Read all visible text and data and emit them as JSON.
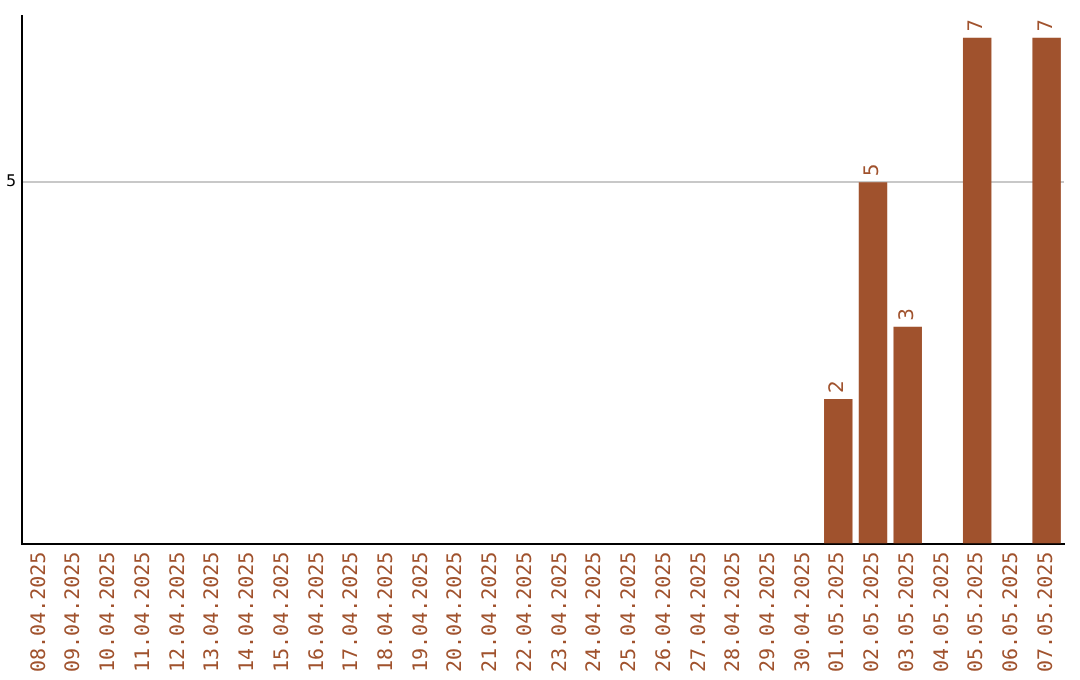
{
  "chart_data": {
    "type": "bar",
    "categories": [
      "08.04.2025",
      "09.04.2025",
      "10.04.2025",
      "11.04.2025",
      "12.04.2025",
      "13.04.2025",
      "14.04.2025",
      "15.04.2025",
      "16.04.2025",
      "17.04.2025",
      "18.04.2025",
      "19.04.2025",
      "20.04.2025",
      "21.04.2025",
      "22.04.2025",
      "23.04.2025",
      "24.04.2025",
      "25.04.2025",
      "26.04.2025",
      "27.04.2025",
      "28.04.2025",
      "29.04.2025",
      "30.04.2025",
      "01.05.2025",
      "02.05.2025",
      "03.05.2025",
      "04.05.2025",
      "05.05.2025",
      "06.05.2025",
      "07.05.2025"
    ],
    "values": [
      null,
      null,
      null,
      null,
      null,
      null,
      null,
      null,
      null,
      null,
      null,
      null,
      null,
      null,
      null,
      null,
      null,
      null,
      null,
      null,
      null,
      null,
      null,
      2,
      5,
      3,
      null,
      7,
      null,
      7
    ],
    "data_labels": true,
    "color": "#a0522d",
    "ylim": [
      0,
      7.3
    ],
    "yticks": [
      5
    ],
    "grid": "y",
    "legend": false
  }
}
